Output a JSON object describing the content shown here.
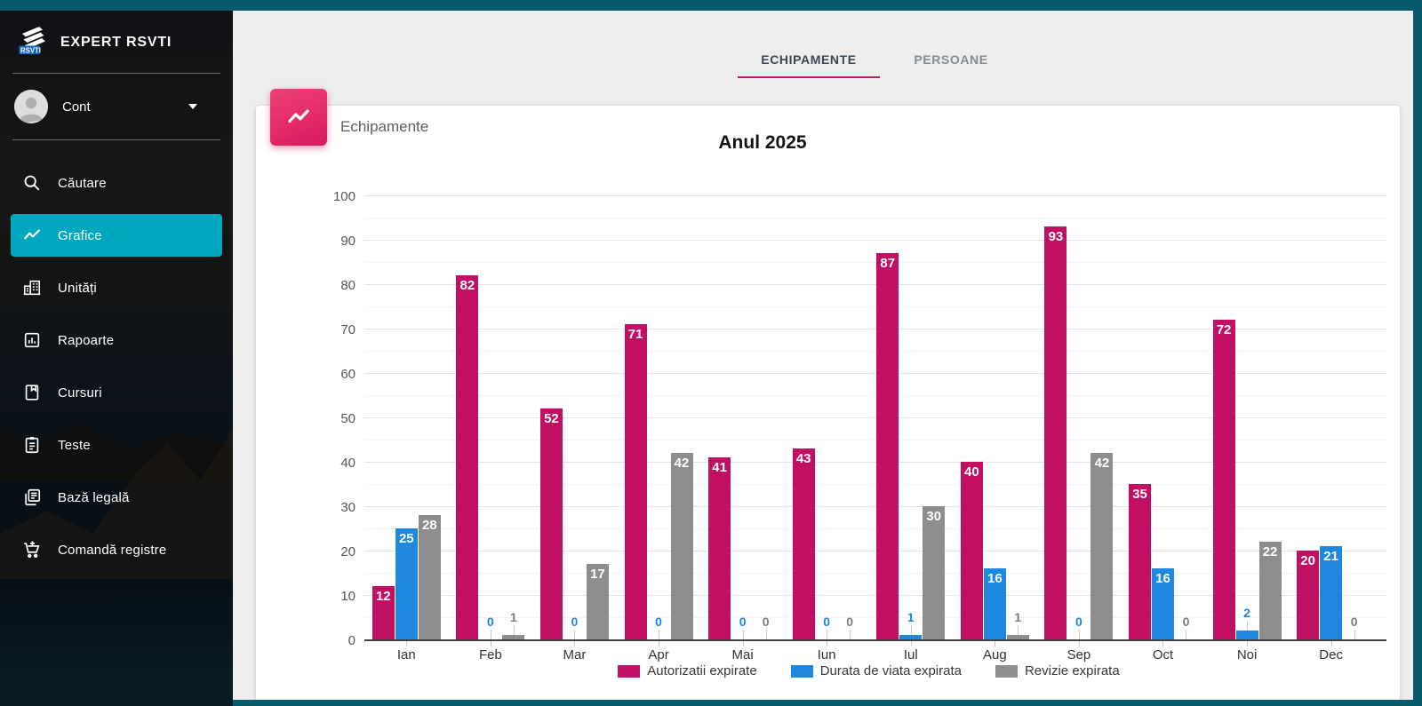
{
  "app": {
    "brand": "EXPERT RSVTI"
  },
  "sidebar": {
    "account_label": "Cont",
    "items": [
      {
        "label": "Căutare",
        "icon": "search-icon"
      },
      {
        "label": "Grafice",
        "icon": "line-chart-icon",
        "active": true
      },
      {
        "label": "Unități",
        "icon": "building-icon"
      },
      {
        "label": "Rapoarte",
        "icon": "report-icon"
      },
      {
        "label": "Cursuri",
        "icon": "book-icon"
      },
      {
        "label": "Teste",
        "icon": "clipboard-icon"
      },
      {
        "label": "Bază legală",
        "icon": "documents-icon"
      },
      {
        "label": "Comandă registre",
        "icon": "cart-plus-icon"
      }
    ]
  },
  "tabs": [
    {
      "label": "ECHIPAMENTE",
      "active": true
    },
    {
      "label": "PERSOANE",
      "active": false
    }
  ],
  "card": {
    "header": "Echipamente"
  },
  "chart_data": {
    "type": "bar",
    "title": "Anul 2025",
    "categories": [
      "Ian",
      "Feb",
      "Mar",
      "Apr",
      "Mai",
      "Iun",
      "Iul",
      "Aug",
      "Sep",
      "Oct",
      "Noi",
      "Dec"
    ],
    "series": [
      {
        "name": "Autorizatii expirate",
        "color": "#c10f63",
        "label_color": "#c10f63",
        "values": [
          12,
          82,
          52,
          71,
          41,
          43,
          87,
          40,
          93,
          35,
          72,
          20
        ]
      },
      {
        "name": "Durata de viata expirata",
        "color": "#1e88e0",
        "label_color": "#1e88e0",
        "values": [
          25,
          0,
          0,
          0,
          0,
          0,
          1,
          16,
          0,
          16,
          2,
          21
        ]
      },
      {
        "name": "Revizie expirata",
        "color": "#8e8c8c",
        "label_color": "#7d7d7d",
        "values": [
          28,
          1,
          17,
          42,
          0,
          0,
          30,
          1,
          42,
          0,
          22,
          0
        ]
      }
    ],
    "ylim": [
      0,
      100
    ],
    "ytick_step": 10,
    "minor_grid_step": 5,
    "grid": true,
    "legend_position": "bottom",
    "inside_label_threshold": 10
  },
  "colors": {
    "frame_teal": "#085a6b",
    "sidebar_active": "#00a8bf",
    "accent_pink": "#c2185b",
    "hero_gradient_start": "#ee4076",
    "hero_gradient_end": "#d91a60",
    "main_background": "#ededed",
    "card_background": "#ffffff"
  }
}
